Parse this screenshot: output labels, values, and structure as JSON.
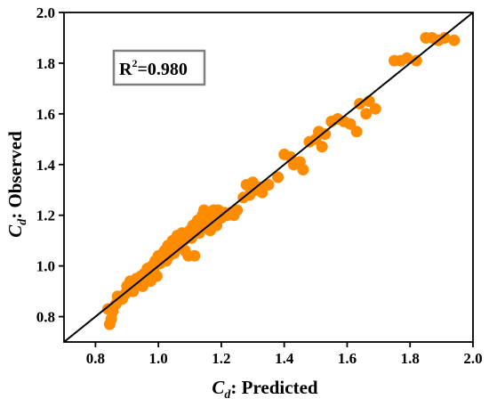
{
  "chart_data": {
    "type": "scatter",
    "xlabel": {
      "symbol": "C",
      "subscript": "d",
      "suffix": ": Predicted"
    },
    "ylabel": {
      "symbol": "C",
      "subscript": "d",
      "suffix": ": Observed"
    },
    "xlim": [
      0.7,
      2.0
    ],
    "ylim": [
      0.7,
      2.0
    ],
    "xticks": [
      "0.8",
      "1.0",
      "1.2",
      "1.4",
      "1.6",
      "1.8",
      "2.0"
    ],
    "yticks": [
      "0.8",
      "1.0",
      "1.2",
      "1.4",
      "1.6",
      "1.8",
      "2.0"
    ],
    "annotation": {
      "base": "R",
      "sup": "2",
      "rest": "=0.980"
    },
    "reference_line": {
      "x": [
        0.7,
        2.0
      ],
      "y": [
        0.7,
        2.0
      ]
    },
    "grid": false,
    "series": [
      {
        "color": "#ff8c00",
        "points": [
          [
            0.845,
            0.77
          ],
          [
            0.85,
            0.79
          ],
          [
            0.84,
            0.83
          ],
          [
            0.855,
            0.82
          ],
          [
            0.865,
            0.85
          ],
          [
            0.87,
            0.88
          ],
          [
            0.885,
            0.87
          ],
          [
            0.895,
            0.89
          ],
          [
            0.9,
            0.92
          ],
          [
            0.91,
            0.94
          ],
          [
            0.92,
            0.9
          ],
          [
            0.925,
            0.93
          ],
          [
            0.93,
            0.95
          ],
          [
            0.94,
            0.93
          ],
          [
            0.945,
            0.96
          ],
          [
            0.95,
            0.92
          ],
          [
            0.955,
            0.97
          ],
          [
            0.96,
            0.95
          ],
          [
            0.965,
            0.99
          ],
          [
            0.97,
            0.97
          ],
          [
            0.975,
            0.94
          ],
          [
            0.98,
            1.0
          ],
          [
            0.985,
            0.98
          ],
          [
            0.99,
            1.02
          ],
          [
            0.995,
            0.96
          ],
          [
            1.0,
            1.04
          ],
          [
            1.005,
            1.01
          ],
          [
            1.01,
            1.03
          ],
          [
            1.015,
            1.05
          ],
          [
            1.02,
            1.06
          ],
          [
            1.025,
            1.02
          ],
          [
            1.03,
            1.08
          ],
          [
            1.035,
            1.04
          ],
          [
            1.04,
            1.07
          ],
          [
            1.045,
            1.1
          ],
          [
            1.05,
            1.05
          ],
          [
            1.055,
            1.09
          ],
          [
            1.06,
            1.12
          ],
          [
            1.065,
            1.08
          ],
          [
            1.07,
            1.11
          ],
          [
            1.075,
            1.13
          ],
          [
            1.08,
            1.1
          ],
          [
            1.085,
            1.06
          ],
          [
            1.09,
            1.12
          ],
          [
            1.095,
            1.04
          ],
          [
            1.1,
            1.14
          ],
          [
            1.105,
            1.11
          ],
          [
            1.11,
            1.16
          ],
          [
            1.115,
            1.04
          ],
          [
            1.12,
            1.15
          ],
          [
            1.125,
            1.18
          ],
          [
            1.13,
            1.13
          ],
          [
            1.135,
            1.17
          ],
          [
            1.14,
            1.2
          ],
          [
            1.145,
            1.22
          ],
          [
            1.15,
            1.16
          ],
          [
            1.155,
            1.19
          ],
          [
            1.16,
            1.21
          ],
          [
            1.165,
            1.14
          ],
          [
            1.17,
            1.18
          ],
          [
            1.175,
            1.22
          ],
          [
            1.18,
            1.2
          ],
          [
            1.185,
            1.16
          ],
          [
            1.19,
            1.22
          ],
          [
            1.2,
            1.19
          ],
          [
            1.21,
            1.21
          ],
          [
            1.22,
            1.2
          ],
          [
            1.23,
            1.21
          ],
          [
            1.24,
            1.2
          ],
          [
            1.25,
            1.22
          ],
          [
            1.27,
            1.27
          ],
          [
            1.28,
            1.32
          ],
          [
            1.29,
            1.28
          ],
          [
            1.3,
            1.33
          ],
          [
            1.31,
            1.3
          ],
          [
            1.32,
            1.31
          ],
          [
            1.33,
            1.29
          ],
          [
            1.35,
            1.32
          ],
          [
            1.38,
            1.35
          ],
          [
            1.4,
            1.44
          ],
          [
            1.42,
            1.43
          ],
          [
            1.43,
            1.4
          ],
          [
            1.45,
            1.41
          ],
          [
            1.46,
            1.38
          ],
          [
            1.48,
            1.49
          ],
          [
            1.5,
            1.5
          ],
          [
            1.51,
            1.53
          ],
          [
            1.52,
            1.47
          ],
          [
            1.53,
            1.52
          ],
          [
            1.55,
            1.57
          ],
          [
            1.57,
            1.58
          ],
          [
            1.59,
            1.57
          ],
          [
            1.61,
            1.56
          ],
          [
            1.63,
            1.53
          ],
          [
            1.64,
            1.64
          ],
          [
            1.66,
            1.6
          ],
          [
            1.67,
            1.65
          ],
          [
            1.69,
            1.62
          ],
          [
            1.75,
            1.81
          ],
          [
            1.77,
            1.81
          ],
          [
            1.79,
            1.82
          ],
          [
            1.82,
            1.81
          ],
          [
            1.85,
            1.9
          ],
          [
            1.87,
            1.9
          ],
          [
            1.89,
            1.89
          ],
          [
            1.91,
            1.9
          ],
          [
            1.94,
            1.89
          ]
        ]
      }
    ]
  }
}
